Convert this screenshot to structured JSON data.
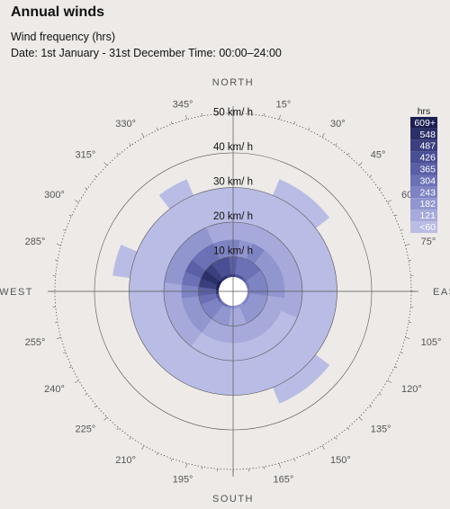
{
  "title": "Annual winds",
  "subtitle": "Wind frequency (hrs)",
  "dateline": "Date: 1st January - 31st December Time: 00:00–24:00",
  "chart_data": {
    "type": "polar-bar",
    "units": "hrs",
    "speed_labels": [
      "10 km/ h",
      "20 km/ h",
      "30 km/ h",
      "40 km/ h",
      "50 km/ h"
    ],
    "compass": {
      "north": "NORTH",
      "east": "EAST",
      "south": "SOUTH",
      "west": "WEST"
    },
    "direction_labels": [
      "15°",
      "30°",
      "45°",
      "60°",
      "75°",
      "105°",
      "120°",
      "135°",
      "150°",
      "165°",
      "195°",
      "210°",
      "225°",
      "240°",
      "255°",
      "285°",
      "300°",
      "315°",
      "330°",
      "345°"
    ],
    "legend": {
      "title": "hrs",
      "items": [
        {
          "label": "609+",
          "color": "#1c1f52"
        },
        {
          "label": "548",
          "color": "#2c3068"
        },
        {
          "label": "487",
          "color": "#3b3f7f"
        },
        {
          "label": "426",
          "color": "#4a4f94"
        },
        {
          "label": "365",
          "color": "#5a5fa6"
        },
        {
          "label": "304",
          "color": "#6c71b6"
        },
        {
          "label": "243",
          "color": "#7e83c3"
        },
        {
          "label": "182",
          "color": "#9296cf"
        },
        {
          "label": "121",
          "color": "#a6a9da"
        },
        {
          "label": "<60",
          "color": "#b9bce4"
        }
      ]
    },
    "speed_bins": [
      [
        2,
        5
      ],
      [
        5,
        10
      ],
      [
        10,
        15
      ],
      [
        15,
        20
      ],
      [
        20,
        30
      ],
      [
        30,
        35
      ]
    ],
    "sectors": [
      {
        "direction": 0,
        "levels": [
          2,
          4,
          6,
          8,
          9,
          null
        ]
      },
      {
        "direction": 15,
        "levels": [
          3,
          5,
          7,
          8,
          9,
          null
        ]
      },
      {
        "direction": 30,
        "levels": [
          3,
          5,
          6,
          8,
          9,
          9
        ]
      },
      {
        "direction": 45,
        "levels": [
          4,
          5,
          7,
          8,
          9,
          9
        ]
      },
      {
        "direction": 60,
        "levels": [
          5,
          6,
          7,
          8,
          9,
          null
        ]
      },
      {
        "direction": 75,
        "levels": [
          5,
          6,
          7,
          8,
          9,
          null
        ]
      },
      {
        "direction": 90,
        "levels": [
          6,
          6,
          7,
          8,
          9,
          null
        ]
      },
      {
        "direction": 105,
        "levels": [
          6,
          7,
          8,
          8,
          9,
          null
        ]
      },
      {
        "direction": 120,
        "levels": [
          6,
          7,
          8,
          9,
          9,
          null
        ]
      },
      {
        "direction": 135,
        "levels": [
          6,
          7,
          8,
          9,
          9,
          9
        ]
      },
      {
        "direction": 150,
        "levels": [
          7,
          7,
          8,
          9,
          9,
          9
        ]
      },
      {
        "direction": 165,
        "levels": [
          7,
          8,
          8,
          9,
          9,
          null
        ]
      },
      {
        "direction": 180,
        "levels": [
          7,
          8,
          8,
          9,
          9,
          null
        ]
      },
      {
        "direction": 195,
        "levels": [
          6,
          7,
          8,
          9,
          9,
          null
        ]
      },
      {
        "direction": 210,
        "levels": [
          5,
          7,
          8,
          9,
          9,
          null
        ]
      },
      {
        "direction": 225,
        "levels": [
          5,
          6,
          7,
          8,
          9,
          null
        ]
      },
      {
        "direction": 240,
        "levels": [
          4,
          6,
          7,
          8,
          9,
          null
        ]
      },
      {
        "direction": 255,
        "levels": [
          3,
          5,
          7,
          8,
          9,
          null
        ]
      },
      {
        "direction": 270,
        "levels": [
          1,
          4,
          6,
          8,
          9,
          null
        ]
      },
      {
        "direction": 285,
        "levels": [
          0,
          2,
          5,
          7,
          9,
          9
        ]
      },
      {
        "direction": 300,
        "levels": [
          0,
          1,
          4,
          7,
          9,
          null
        ]
      },
      {
        "direction": 315,
        "levels": [
          1,
          2,
          5,
          7,
          9,
          null
        ]
      },
      {
        "direction": 330,
        "levels": [
          1,
          3,
          5,
          7,
          9,
          9
        ]
      },
      {
        "direction": 345,
        "levels": [
          2,
          3,
          6,
          8,
          9,
          null
        ]
      }
    ]
  }
}
